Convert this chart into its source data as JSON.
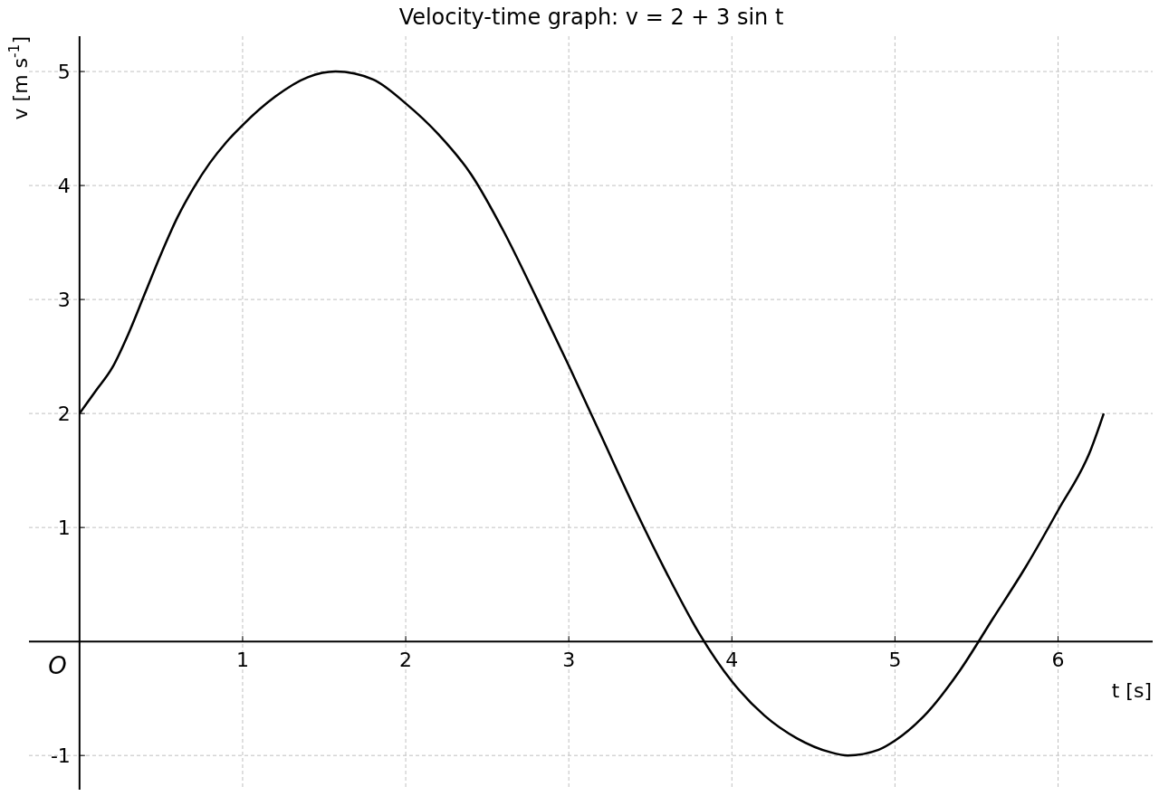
{
  "chart_data": {
    "type": "line",
    "title": "Velocity-time graph: v = 2 + 3 sin t",
    "xlabel": "t [s]",
    "ylabel": "v [m s$^{-1}$]",
    "annotations": [
      "O"
    ],
    "xlim": [
      -0.31,
      6.58
    ],
    "ylim": [
      -1.3,
      5.31
    ],
    "xticks": [
      1,
      2,
      3,
      4,
      5,
      6
    ],
    "yticks": [
      -1,
      1,
      2,
      3,
      4,
      5
    ],
    "grid": true,
    "marker": "none",
    "line_style": "solid",
    "series": [
      {
        "color": "#000000",
        "x": [
          0,
          0.1,
          0.2,
          0.3,
          0.4,
          0.5,
          0.6,
          0.7,
          0.8,
          0.9,
          1.0,
          1.2,
          1.4,
          1.57,
          1.8,
          2.0,
          2.2,
          2.4,
          2.6,
          2.8,
          3.0,
          3.2,
          3.4,
          3.6,
          3.8,
          4.0,
          4.2,
          4.4,
          4.6,
          4.71,
          4.9,
          5.0,
          5.2,
          5.4,
          5.6,
          5.8,
          6.0,
          6.2,
          6.28
        ],
        "values": [
          2.0,
          2.2,
          2.4,
          2.7,
          3.05,
          3.4,
          3.72,
          3.98,
          4.2,
          4.38,
          4.53,
          4.78,
          4.95,
          5.0,
          4.93,
          4.72,
          4.45,
          4.1,
          3.6,
          3.02,
          2.42,
          1.8,
          1.18,
          0.6,
          0.07,
          -0.35,
          -0.65,
          -0.85,
          -0.97,
          -1.0,
          -0.95,
          -0.87,
          -0.62,
          -0.25,
          0.2,
          0.65,
          1.15,
          1.68,
          2.0
        ]
      }
    ]
  }
}
